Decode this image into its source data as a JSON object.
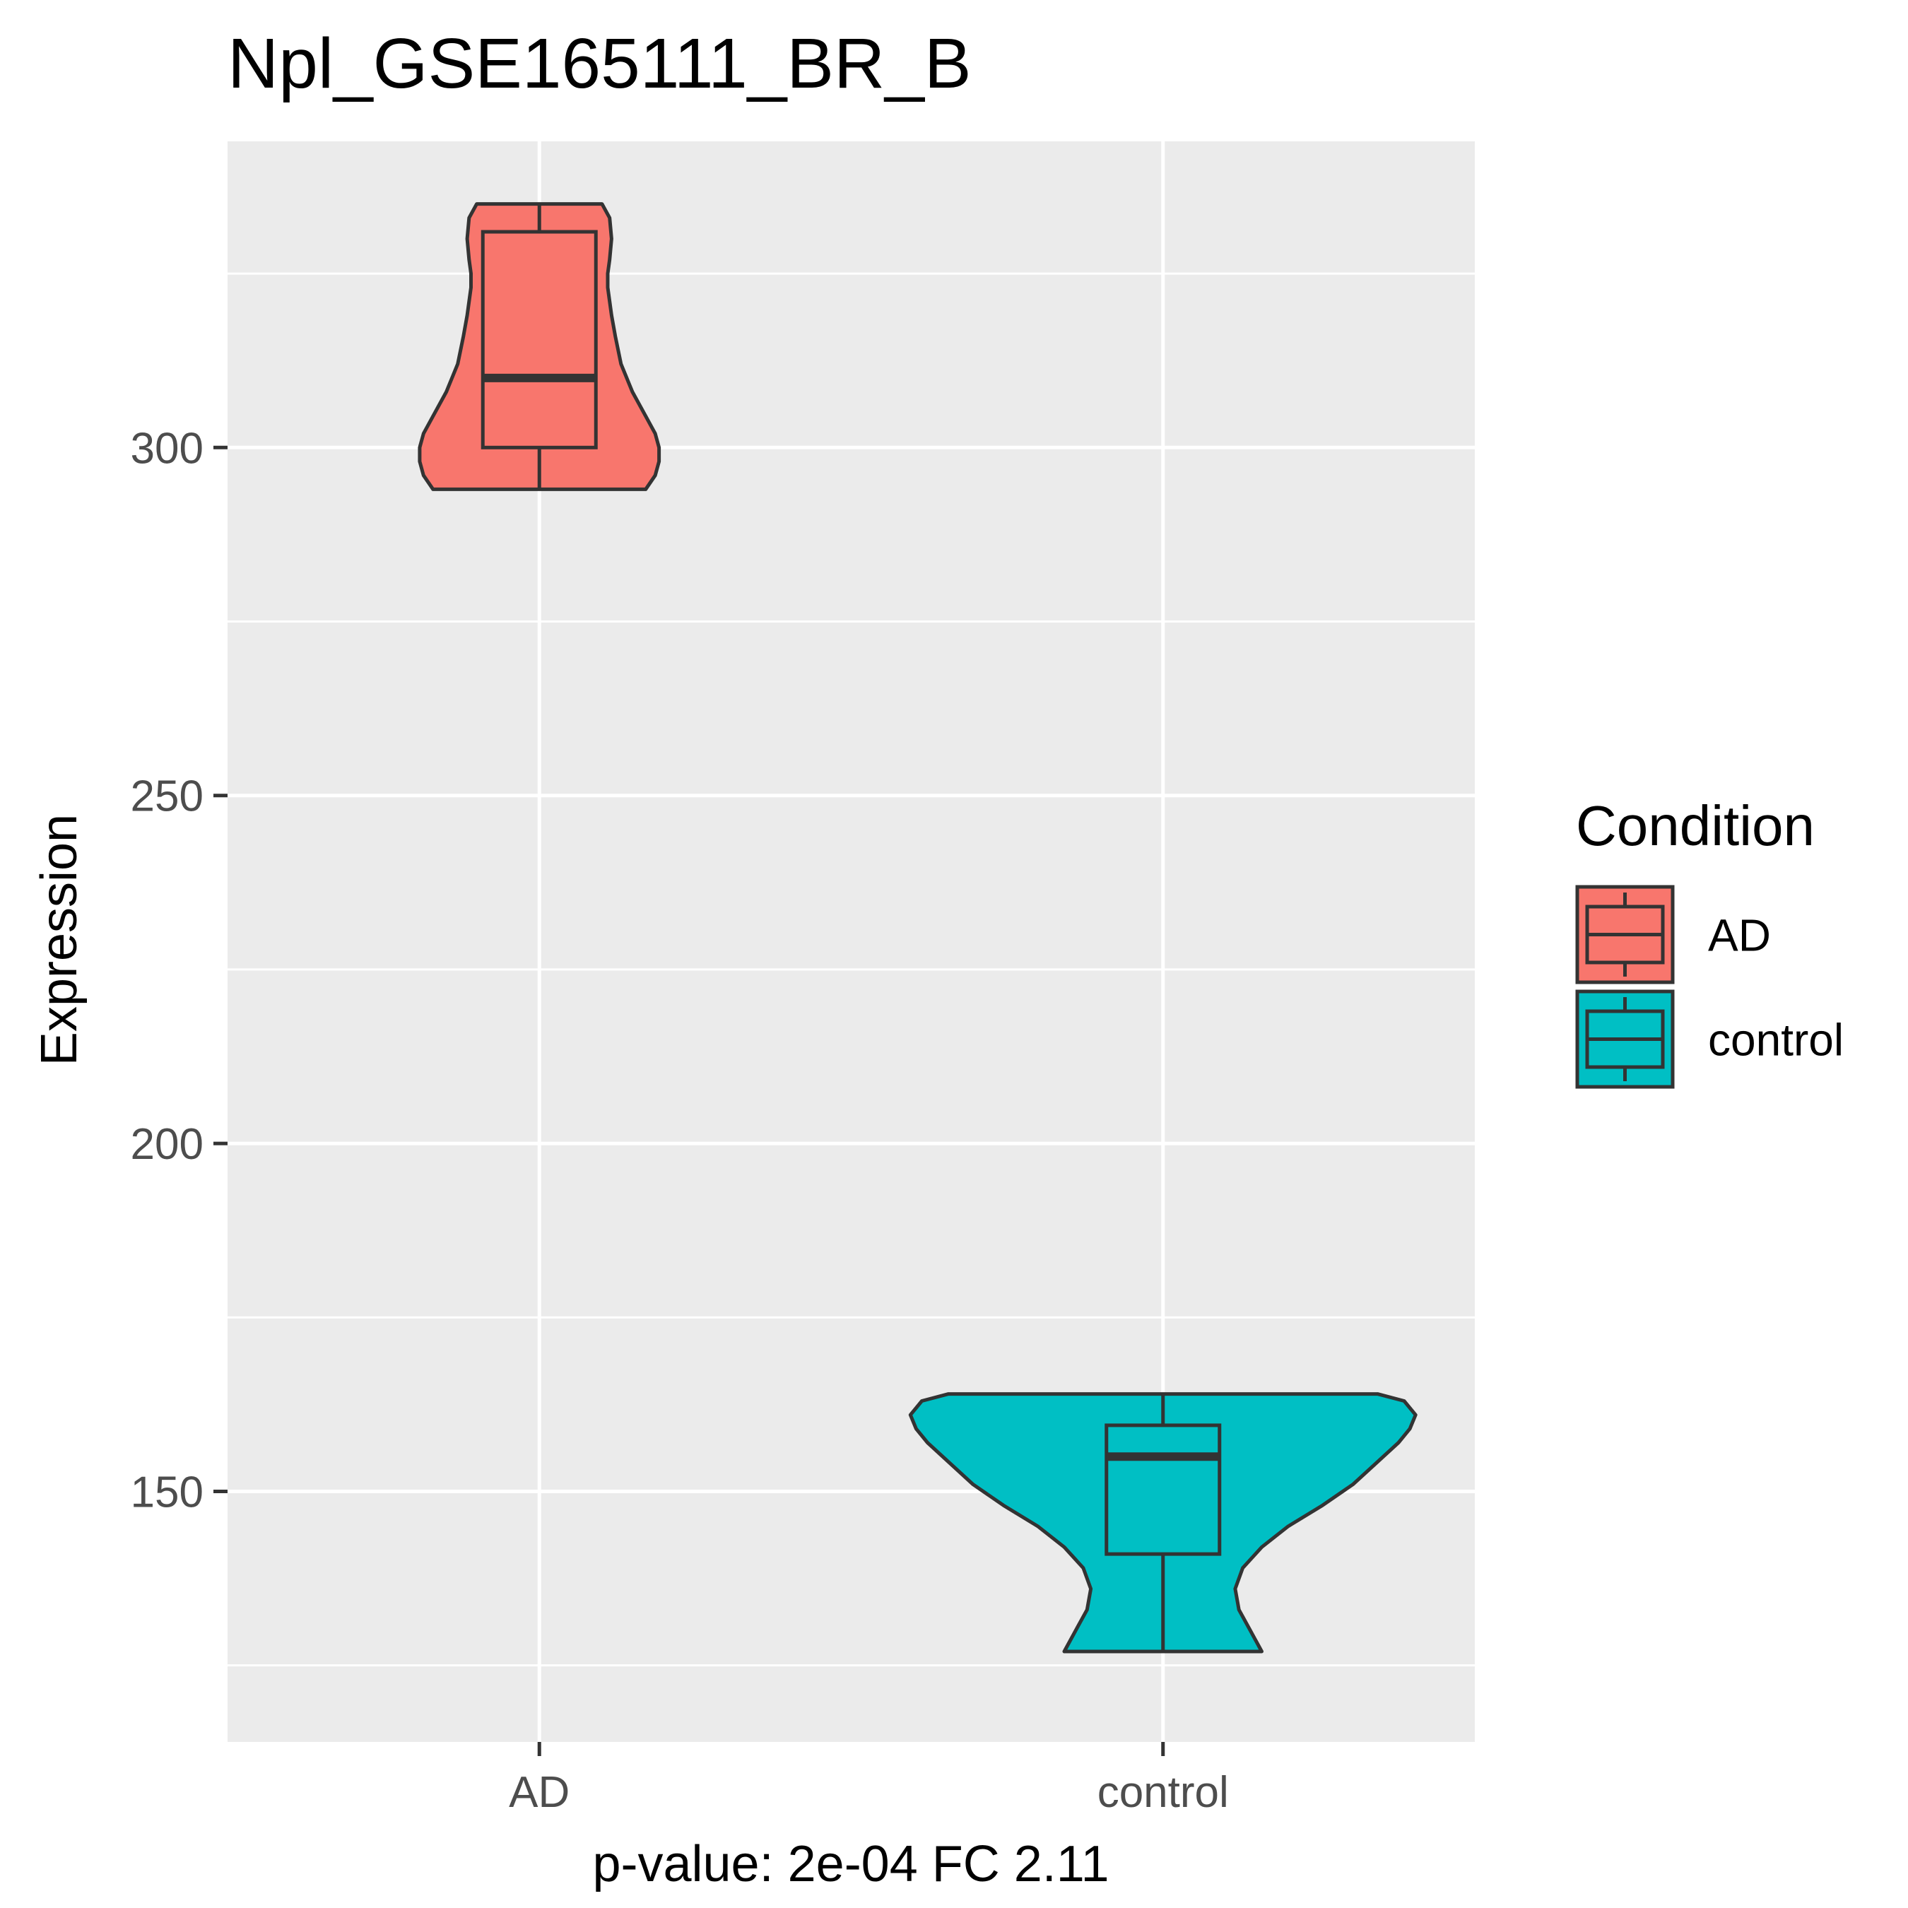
{
  "chart_data": {
    "type": "violin",
    "title": "Npl_GSE165111_BR_B",
    "xlabel": "p-value: 2e-04 FC 2.11",
    "ylabel": "Expression",
    "categories": [
      "AD",
      "control"
    ],
    "ylim": [
      114,
      344
    ],
    "yticks": [
      150,
      200,
      250,
      300
    ],
    "grid": true,
    "legend": {
      "title": "Condition",
      "position": "right",
      "entries": [
        {
          "label": "AD",
          "color": "#F8766D"
        },
        {
          "label": "control",
          "color": "#00BFC4"
        }
      ]
    },
    "series": [
      {
        "category": "AD",
        "color": "#F8766D",
        "box": {
          "min": 294,
          "q1": 300,
          "median": 310,
          "q3": 331,
          "max": 335
        },
        "violin": {
          "y": [
            294,
            296,
            298,
            300,
            302,
            305,
            308,
            312,
            316,
            319,
            321,
            323,
            325,
            327,
            330,
            333,
            335
          ],
          "halfwidth": [
            0.56,
            0.61,
            0.63,
            0.63,
            0.61,
            0.55,
            0.49,
            0.43,
            0.4,
            0.38,
            0.37,
            0.36,
            0.36,
            0.37,
            0.38,
            0.37,
            0.33
          ]
        }
      },
      {
        "category": "control",
        "color": "#00BFC4",
        "box": {
          "min": 127,
          "q1": 141,
          "median": 155,
          "q3": 159.5,
          "max": 164
        },
        "violin": {
          "y": [
            127,
            130,
            133,
            136,
            139,
            142,
            145,
            148,
            151,
            154,
            157,
            159,
            161,
            163,
            164
          ],
          "halfwidth": [
            0.52,
            0.46,
            0.4,
            0.38,
            0.42,
            0.52,
            0.66,
            0.84,
            1.0,
            1.12,
            1.24,
            1.3,
            1.33,
            1.27,
            1.13
          ]
        }
      }
    ]
  }
}
